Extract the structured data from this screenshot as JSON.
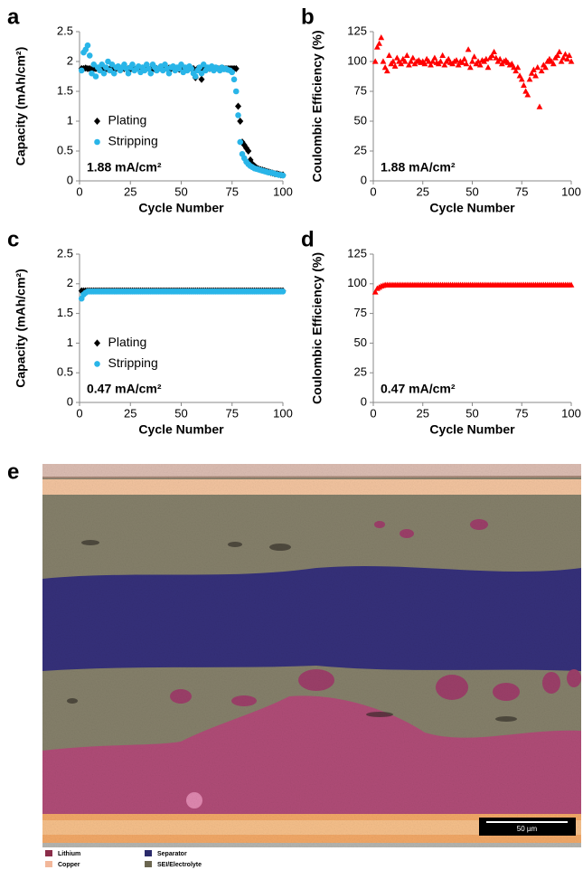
{
  "chart_data": [
    {
      "panel": "a",
      "type": "scatter",
      "xlabel": "Cycle Number",
      "ylabel": "Capacity (mAh/cm²)",
      "annotation": "1.88 mA/cm²",
      "xlim": [
        0,
        100
      ],
      "xticks": [
        0,
        25,
        50,
        75,
        100
      ],
      "ylim": [
        0,
        2.5
      ],
      "yticks": [
        0,
        0.5,
        1,
        1.5,
        2,
        2.5
      ],
      "grid": false,
      "legend": "center-left",
      "x": [
        1,
        2,
        3,
        4,
        5,
        6,
        7,
        8,
        9,
        10,
        11,
        12,
        13,
        14,
        15,
        16,
        17,
        18,
        19,
        20,
        21,
        22,
        23,
        24,
        25,
        26,
        27,
        28,
        29,
        30,
        31,
        32,
        33,
        34,
        35,
        36,
        37,
        38,
        39,
        40,
        41,
        42,
        43,
        44,
        45,
        46,
        47,
        48,
        49,
        50,
        51,
        52,
        53,
        54,
        55,
        56,
        57,
        58,
        59,
        60,
        61,
        62,
        63,
        64,
        65,
        66,
        67,
        68,
        69,
        70,
        71,
        72,
        73,
        74,
        75,
        76,
        77,
        78,
        79,
        80,
        81,
        82,
        83,
        84,
        85,
        86,
        87,
        88,
        89,
        90,
        91,
        92,
        93,
        94,
        95,
        96,
        97,
        98,
        99,
        100
      ],
      "series": [
        {
          "name": "Plating",
          "color": "#000000",
          "marker": "diamond",
          "values": [
            1.88,
            1.88,
            1.89,
            1.88,
            1.88,
            1.87,
            1.88,
            1.88,
            1.88,
            1.89,
            1.88,
            1.88,
            1.88,
            1.87,
            1.88,
            1.88,
            1.88,
            1.88,
            1.89,
            1.88,
            1.88,
            1.88,
            1.88,
            1.88,
            1.87,
            1.88,
            1.88,
            1.88,
            1.88,
            1.88,
            1.89,
            1.88,
            1.88,
            1.88,
            1.88,
            1.88,
            1.87,
            1.88,
            1.88,
            1.88,
            1.88,
            1.88,
            1.88,
            1.89,
            1.88,
            1.88,
            1.88,
            1.88,
            1.87,
            1.88,
            1.88,
            1.88,
            1.88,
            1.88,
            1.88,
            1.88,
            1.73,
            1.88,
            1.85,
            1.7,
            1.88,
            1.88,
            1.88,
            1.88,
            1.88,
            1.88,
            1.88,
            1.88,
            1.88,
            1.88,
            1.88,
            1.88,
            1.88,
            1.88,
            1.88,
            1.88,
            1.88,
            1.25,
            1.0,
            0.65,
            0.6,
            0.55,
            0.5,
            0.35,
            0.28,
            0.25,
            0.22,
            0.2,
            0.19,
            0.18,
            0.17,
            0.16,
            0.15,
            0.14,
            0.13,
            0.12,
            0.12,
            0.11,
            0.1,
            0.1
          ]
        },
        {
          "name": "Stripping",
          "color": "#29b5e8",
          "marker": "circle",
          "values": [
            1.85,
            2.15,
            2.2,
            2.27,
            2.1,
            1.8,
            1.95,
            1.75,
            1.9,
            1.85,
            1.95,
            1.8,
            1.9,
            2.0,
            1.85,
            1.95,
            1.8,
            1.9,
            1.92,
            1.85,
            1.9,
            1.95,
            1.88,
            1.8,
            1.9,
            1.95,
            1.85,
            1.88,
            1.92,
            1.82,
            1.9,
            1.85,
            1.95,
            1.88,
            1.8,
            1.95,
            1.9,
            1.85,
            1.88,
            1.92,
            1.85,
            1.95,
            1.88,
            1.8,
            1.9,
            1.92,
            1.85,
            1.9,
            1.88,
            1.95,
            1.82,
            1.9,
            1.85,
            1.92,
            1.88,
            1.8,
            1.75,
            1.85,
            1.9,
            1.8,
            1.95,
            1.85,
            1.9,
            1.88,
            1.92,
            1.85,
            1.9,
            1.88,
            1.85,
            1.9,
            1.87,
            1.88,
            1.86,
            1.85,
            1.82,
            1.7,
            1.5,
            1.1,
            0.65,
            0.45,
            0.38,
            0.32,
            0.28,
            0.25,
            0.23,
            0.21,
            0.2,
            0.19,
            0.18,
            0.17,
            0.16,
            0.15,
            0.14,
            0.14,
            0.13,
            0.12,
            0.11,
            0.1,
            0.1,
            0.09
          ]
        }
      ]
    },
    {
      "panel": "b",
      "type": "scatter",
      "xlabel": "Cycle Number",
      "ylabel": "Coulombic Efficiency (%)",
      "annotation": "1.88 mA/cm²",
      "xlim": [
        0,
        100
      ],
      "xticks": [
        0,
        25,
        50,
        75,
        100
      ],
      "ylim": [
        0,
        125
      ],
      "yticks": [
        0,
        25,
        50,
        75,
        100,
        125
      ],
      "grid": false,
      "color": "#ff0000",
      "marker": "triangle",
      "x": [
        1,
        2,
        3,
        4,
        5,
        6,
        7,
        8,
        9,
        10,
        11,
        12,
        13,
        14,
        15,
        16,
        17,
        18,
        19,
        20,
        21,
        22,
        23,
        24,
        25,
        26,
        27,
        28,
        29,
        30,
        31,
        32,
        33,
        34,
        35,
        36,
        37,
        38,
        39,
        40,
        41,
        42,
        43,
        44,
        45,
        46,
        47,
        48,
        49,
        50,
        51,
        52,
        53,
        54,
        55,
        56,
        57,
        58,
        59,
        60,
        61,
        62,
        63,
        64,
        65,
        66,
        67,
        68,
        69,
        70,
        71,
        72,
        73,
        74,
        75,
        76,
        77,
        78,
        79,
        80,
        81,
        82,
        83,
        84,
        85,
        86,
        87,
        88,
        89,
        90,
        91,
        92,
        93,
        94,
        95,
        96,
        97,
        98,
        99,
        100
      ],
      "values": [
        100,
        112,
        115,
        120,
        100,
        95,
        92,
        105,
        98,
        100,
        96,
        103,
        100,
        98,
        102,
        100,
        105,
        97,
        100,
        103,
        98,
        100,
        101,
        99,
        100,
        98,
        102,
        100,
        97,
        100,
        103,
        99,
        98,
        100,
        105,
        97,
        100,
        102,
        99,
        98,
        100,
        101,
        97,
        100,
        99,
        102,
        98,
        110,
        95,
        100,
        104,
        98,
        100,
        97,
        101,
        100,
        102,
        95,
        103,
        105,
        108,
        103,
        100,
        102,
        98,
        100,
        101,
        99,
        97,
        98,
        95,
        92,
        95,
        88,
        85,
        80,
        75,
        72,
        85,
        90,
        93,
        88,
        95,
        62,
        92,
        97,
        95,
        100,
        102,
        100,
        98,
        103,
        105,
        108,
        100,
        103,
        106,
        102,
        105,
        100
      ]
    },
    {
      "panel": "c",
      "type": "scatter",
      "xlabel": "Cycle Number",
      "ylabel": "Capacity (mAh/cm²)",
      "annotation": "0.47 mA/cm²",
      "xlim": [
        0,
        100
      ],
      "xticks": [
        0,
        25,
        50,
        75,
        100
      ],
      "ylim": [
        0,
        2.5
      ],
      "yticks": [
        0,
        0.5,
        1,
        1.5,
        2,
        2.5
      ],
      "grid": false,
      "legend": "center-left",
      "x": [
        1,
        2,
        3,
        4,
        5,
        6,
        7,
        8,
        9,
        10,
        11,
        12,
        13,
        14,
        15,
        16,
        17,
        18,
        19,
        20,
        21,
        22,
        23,
        24,
        25,
        26,
        27,
        28,
        29,
        30,
        31,
        32,
        33,
        34,
        35,
        36,
        37,
        38,
        39,
        40,
        41,
        42,
        43,
        44,
        45,
        46,
        47,
        48,
        49,
        50,
        51,
        52,
        53,
        54,
        55,
        56,
        57,
        58,
        59,
        60,
        61,
        62,
        63,
        64,
        65,
        66,
        67,
        68,
        69,
        70,
        71,
        72,
        73,
        74,
        75,
        76,
        77,
        78,
        79,
        80,
        81,
        82,
        83,
        84,
        85,
        86,
        87,
        88,
        89,
        90,
        91,
        92,
        93,
        94,
        95,
        96,
        97,
        98,
        99,
        100
      ],
      "series": [
        {
          "name": "Plating",
          "color": "#000000",
          "marker": "diamond",
          "values": [
            1.88,
            1.88,
            1.88,
            1.88,
            1.88,
            1.88,
            1.88,
            1.88,
            1.88,
            1.88,
            1.88,
            1.88,
            1.88,
            1.88,
            1.88,
            1.88,
            1.88,
            1.88,
            1.88,
            1.88,
            1.88,
            1.88,
            1.88,
            1.88,
            1.88,
            1.88,
            1.88,
            1.88,
            1.88,
            1.88,
            1.88,
            1.88,
            1.88,
            1.88,
            1.88,
            1.88,
            1.88,
            1.88,
            1.88,
            1.88,
            1.88,
            1.88,
            1.88,
            1.88,
            1.88,
            1.88,
            1.88,
            1.88,
            1.88,
            1.88,
            1.88,
            1.88,
            1.88,
            1.88,
            1.88,
            1.88,
            1.88,
            1.88,
            1.88,
            1.88,
            1.88,
            1.88,
            1.88,
            1.88,
            1.88,
            1.88,
            1.88,
            1.88,
            1.88,
            1.88,
            1.88,
            1.88,
            1.88,
            1.88,
            1.88,
            1.88,
            1.88,
            1.88,
            1.88,
            1.88,
            1.88,
            1.88,
            1.88,
            1.88,
            1.88,
            1.88,
            1.88,
            1.88,
            1.88,
            1.88,
            1.88,
            1.88,
            1.88,
            1.88,
            1.88,
            1.88,
            1.88,
            1.88,
            1.88,
            1.88
          ]
        },
        {
          "name": "Stripping",
          "color": "#29b5e8",
          "marker": "circle",
          "values": [
            1.75,
            1.82,
            1.85,
            1.87,
            1.87,
            1.87,
            1.87,
            1.87,
            1.87,
            1.87,
            1.87,
            1.87,
            1.87,
            1.87,
            1.87,
            1.87,
            1.87,
            1.87,
            1.87,
            1.87,
            1.87,
            1.87,
            1.87,
            1.87,
            1.87,
            1.87,
            1.87,
            1.87,
            1.87,
            1.87,
            1.87,
            1.87,
            1.87,
            1.87,
            1.87,
            1.87,
            1.87,
            1.87,
            1.87,
            1.87,
            1.87,
            1.87,
            1.87,
            1.87,
            1.87,
            1.87,
            1.87,
            1.87,
            1.87,
            1.87,
            1.87,
            1.87,
            1.87,
            1.87,
            1.87,
            1.87,
            1.87,
            1.87,
            1.87,
            1.87,
            1.87,
            1.87,
            1.87,
            1.87,
            1.87,
            1.87,
            1.87,
            1.87,
            1.87,
            1.87,
            1.87,
            1.87,
            1.87,
            1.87,
            1.87,
            1.87,
            1.87,
            1.87,
            1.87,
            1.87,
            1.87,
            1.87,
            1.87,
            1.87,
            1.87,
            1.87,
            1.87,
            1.87,
            1.87,
            1.87,
            1.87,
            1.87,
            1.87,
            1.87,
            1.87,
            1.87,
            1.87,
            1.87,
            1.87,
            1.87
          ]
        }
      ]
    },
    {
      "panel": "d",
      "type": "scatter",
      "xlabel": "Cycle Number",
      "ylabel": "Coulombic Efficiency (%)",
      "annotation": "0.47 mA/cm²",
      "xlim": [
        0,
        100
      ],
      "xticks": [
        0,
        25,
        50,
        75,
        100
      ],
      "ylim": [
        0,
        125
      ],
      "yticks": [
        0,
        25,
        50,
        75,
        100,
        125
      ],
      "grid": false,
      "color": "#ff0000",
      "marker": "triangle",
      "x": [
        1,
        2,
        3,
        4,
        5,
        6,
        7,
        8,
        9,
        10,
        11,
        12,
        13,
        14,
        15,
        16,
        17,
        18,
        19,
        20,
        21,
        22,
        23,
        24,
        25,
        26,
        27,
        28,
        29,
        30,
        31,
        32,
        33,
        34,
        35,
        36,
        37,
        38,
        39,
        40,
        41,
        42,
        43,
        44,
        45,
        46,
        47,
        48,
        49,
        50,
        51,
        52,
        53,
        54,
        55,
        56,
        57,
        58,
        59,
        60,
        61,
        62,
        63,
        64,
        65,
        66,
        67,
        68,
        69,
        70,
        71,
        72,
        73,
        74,
        75,
        76,
        77,
        78,
        79,
        80,
        81,
        82,
        83,
        84,
        85,
        86,
        87,
        88,
        89,
        90,
        91,
        92,
        93,
        94,
        95,
        96,
        97,
        98,
        99,
        100
      ],
      "values": [
        93,
        96,
        97,
        98,
        98.5,
        99,
        99,
        99,
        99,
        99,
        99,
        99,
        99,
        99,
        99,
        99,
        99,
        99,
        99,
        99,
        99,
        99,
        99,
        99,
        99,
        99,
        99,
        99,
        99,
        99,
        99,
        99,
        99,
        99,
        99,
        99,
        99,
        99,
        99,
        99,
        99,
        99,
        99,
        99,
        99,
        99,
        99,
        99,
        99,
        99,
        99,
        99,
        99,
        99,
        99,
        99,
        99,
        99,
        99,
        99,
        99,
        99,
        99,
        99,
        99,
        99,
        99,
        99,
        99,
        99,
        99,
        99,
        99,
        99,
        99,
        99,
        99,
        99,
        99,
        99,
        99,
        99,
        99,
        99,
        99,
        99,
        99,
        99,
        99,
        99,
        99,
        99,
        99,
        99,
        99,
        99,
        99,
        99,
        99,
        99
      ]
    }
  ],
  "panel_e": {
    "label": "e",
    "scale_bar": "50 µm",
    "legend": [
      "Lithium",
      "Separator",
      "Copper",
      "SEI/Electrolyte"
    ]
  }
}
